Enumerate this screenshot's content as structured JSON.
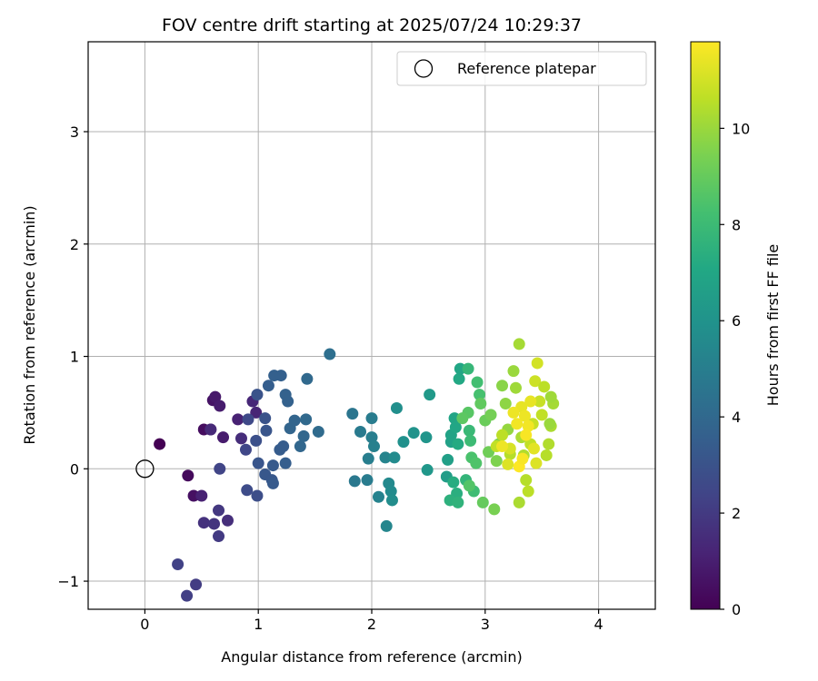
{
  "chart_data": {
    "type": "scatter",
    "title": "FOV centre drift starting at 2025/07/24 10:29:37",
    "xlabel": "Angular distance from reference (arcmin)",
    "ylabel": "Rotation from reference (arcmin)",
    "xlim": [
      -0.5,
      4.5
    ],
    "ylim": [
      -1.25,
      3.8
    ],
    "x_ticks": [
      0,
      1,
      2,
      3,
      4
    ],
    "y_ticks": [
      -1,
      0,
      1,
      2,
      3
    ],
    "x_tick_labels": [
      "0",
      "1",
      "2",
      "3",
      "4"
    ],
    "y_tick_labels": [
      "−1",
      "0",
      "1",
      "2",
      "3"
    ],
    "grid": true,
    "colorbar": {
      "label": "Hours from first FF file",
      "colormap": "viridis",
      "range": [
        0,
        11.8
      ],
      "ticks": [
        0,
        2,
        4,
        6,
        8,
        10
      ],
      "tick_labels": [
        "0",
        "2",
        "4",
        "6",
        "8",
        "10"
      ]
    },
    "legend": {
      "placement": "top-right",
      "entries": [
        {
          "label": "Reference platepar",
          "marker": "open-circle"
        }
      ]
    },
    "reference_point": {
      "x": 0,
      "y": 0
    },
    "series": [
      {
        "marker": "filled-circle",
        "colored_by": "hours",
        "points": [
          {
            "x": 0.13,
            "y": 0.22,
            "c": 0.0
          },
          {
            "x": 0.38,
            "y": -0.06,
            "c": 0.3
          },
          {
            "x": 0.43,
            "y": -0.24,
            "c": 0.5
          },
          {
            "x": 0.5,
            "y": -0.24,
            "c": 1.1
          },
          {
            "x": 0.52,
            "y": 0.35,
            "c": 0.4
          },
          {
            "x": 0.58,
            "y": 0.35,
            "c": 0.6
          },
          {
            "x": 0.6,
            "y": 0.61,
            "c": 0.6
          },
          {
            "x": 0.62,
            "y": 0.64,
            "c": 0.8
          },
          {
            "x": 0.66,
            "y": 0.56,
            "c": 0.9
          },
          {
            "x": 0.69,
            "y": 0.28,
            "c": 0.9
          },
          {
            "x": 0.82,
            "y": 0.44,
            "c": 1.1
          },
          {
            "x": 0.95,
            "y": 0.6,
            "c": 1.3
          },
          {
            "x": 0.98,
            "y": 0.5,
            "c": 1.2
          },
          {
            "x": 0.58,
            "y": 0.35,
            "c": 1.4
          },
          {
            "x": 0.85,
            "y": 0.27,
            "c": 1.5
          },
          {
            "x": 0.73,
            "y": -0.46,
            "c": 1.6
          },
          {
            "x": 0.52,
            "y": -0.48,
            "c": 1.7
          },
          {
            "x": 0.61,
            "y": -0.49,
            "c": 1.8
          },
          {
            "x": 0.65,
            "y": -0.37,
            "c": 1.9
          },
          {
            "x": 0.65,
            "y": -0.6,
            "c": 2.0
          },
          {
            "x": 0.45,
            "y": -1.03,
            "c": 2.1
          },
          {
            "x": 0.37,
            "y": -1.13,
            "c": 2.2
          },
          {
            "x": 0.29,
            "y": -0.85,
            "c": 2.3
          },
          {
            "x": 0.66,
            "y": 0.0,
            "c": 2.4
          },
          {
            "x": 0.89,
            "y": 0.17,
            "c": 2.5
          },
          {
            "x": 0.91,
            "y": 0.44,
            "c": 2.6
          },
          {
            "x": 0.9,
            "y": -0.19,
            "c": 2.7
          },
          {
            "x": 0.99,
            "y": -0.24,
            "c": 2.8
          },
          {
            "x": 0.98,
            "y": 0.25,
            "c": 2.9
          },
          {
            "x": 0.99,
            "y": 0.66,
            "c": 3.0
          },
          {
            "x": 1.06,
            "y": 0.45,
            "c": 3.0
          },
          {
            "x": 1.07,
            "y": 0.34,
            "c": 3.1
          },
          {
            "x": 1.0,
            "y": 0.05,
            "c": 3.1
          },
          {
            "x": 1.06,
            "y": -0.05,
            "c": 3.2
          },
          {
            "x": 1.12,
            "y": -0.1,
            "c": 3.2
          },
          {
            "x": 1.13,
            "y": -0.13,
            "c": 3.3
          },
          {
            "x": 1.13,
            "y": 0.03,
            "c": 3.3
          },
          {
            "x": 1.19,
            "y": 0.17,
            "c": 3.4
          },
          {
            "x": 1.22,
            "y": 0.2,
            "c": 3.4
          },
          {
            "x": 1.24,
            "y": 0.05,
            "c": 3.5
          },
          {
            "x": 1.09,
            "y": 0.74,
            "c": 3.5
          },
          {
            "x": 1.14,
            "y": 0.83,
            "c": 3.6
          },
          {
            "x": 1.2,
            "y": 0.83,
            "c": 3.6
          },
          {
            "x": 1.24,
            "y": 0.66,
            "c": 3.7
          },
          {
            "x": 1.26,
            "y": 0.6,
            "c": 3.7
          },
          {
            "x": 1.28,
            "y": 0.36,
            "c": 3.8
          },
          {
            "x": 1.32,
            "y": 0.43,
            "c": 3.8
          },
          {
            "x": 1.37,
            "y": 0.2,
            "c": 3.9
          },
          {
            "x": 1.4,
            "y": 0.29,
            "c": 3.9
          },
          {
            "x": 1.42,
            "y": 0.44,
            "c": 4.0
          },
          {
            "x": 1.43,
            "y": 0.8,
            "c": 4.0
          },
          {
            "x": 1.53,
            "y": 0.33,
            "c": 4.1
          },
          {
            "x": 1.63,
            "y": 1.02,
            "c": 4.3
          },
          {
            "x": 1.83,
            "y": 0.49,
            "c": 4.6
          },
          {
            "x": 1.85,
            "y": -0.11,
            "c": 4.7
          },
          {
            "x": 1.9,
            "y": 0.33,
            "c": 4.8
          },
          {
            "x": 1.96,
            "y": -0.1,
            "c": 4.9
          },
          {
            "x": 1.97,
            "y": 0.09,
            "c": 5.0
          },
          {
            "x": 2.0,
            "y": 0.45,
            "c": 4.9
          },
          {
            "x": 2.0,
            "y": 0.28,
            "c": 5.0
          },
          {
            "x": 2.02,
            "y": 0.2,
            "c": 5.1
          },
          {
            "x": 2.06,
            "y": -0.25,
            "c": 5.2
          },
          {
            "x": 2.12,
            "y": 0.1,
            "c": 5.3
          },
          {
            "x": 2.13,
            "y": -0.51,
            "c": 5.4
          },
          {
            "x": 2.15,
            "y": -0.13,
            "c": 5.5
          },
          {
            "x": 2.17,
            "y": -0.2,
            "c": 5.6
          },
          {
            "x": 2.18,
            "y": -0.28,
            "c": 5.7
          },
          {
            "x": 2.2,
            "y": 0.1,
            "c": 5.6
          },
          {
            "x": 2.22,
            "y": 0.54,
            "c": 5.8
          },
          {
            "x": 2.28,
            "y": 0.24,
            "c": 5.9
          },
          {
            "x": 2.37,
            "y": 0.32,
            "c": 6.0
          },
          {
            "x": 2.48,
            "y": 0.28,
            "c": 6.1
          },
          {
            "x": 2.49,
            "y": -0.01,
            "c": 6.2
          },
          {
            "x": 2.51,
            "y": 0.66,
            "c": 6.3
          },
          {
            "x": 2.66,
            "y": -0.07,
            "c": 6.5
          },
          {
            "x": 2.67,
            "y": 0.08,
            "c": 6.6
          },
          {
            "x": 2.7,
            "y": 0.24,
            "c": 6.7
          },
          {
            "x": 2.7,
            "y": 0.3,
            "c": 6.8
          },
          {
            "x": 2.73,
            "y": 0.45,
            "c": 6.9
          },
          {
            "x": 2.74,
            "y": 0.37,
            "c": 7.0
          },
          {
            "x": 2.77,
            "y": 0.8,
            "c": 7.1
          },
          {
            "x": 2.78,
            "y": 0.89,
            "c": 7.0
          },
          {
            "x": 2.76,
            "y": 0.22,
            "c": 7.2
          },
          {
            "x": 2.72,
            "y": -0.12,
            "c": 7.3
          },
          {
            "x": 2.75,
            "y": -0.22,
            "c": 7.4
          },
          {
            "x": 2.69,
            "y": -0.28,
            "c": 7.5
          },
          {
            "x": 2.76,
            "y": -0.3,
            "c": 7.6
          },
          {
            "x": 2.83,
            "y": -0.1,
            "c": 7.7
          },
          {
            "x": 2.85,
            "y": 0.89,
            "c": 7.8
          },
          {
            "x": 2.86,
            "y": 0.34,
            "c": 7.9
          },
          {
            "x": 2.87,
            "y": 0.25,
            "c": 8.0
          },
          {
            "x": 2.9,
            "y": -0.2,
            "c": 8.1
          },
          {
            "x": 2.93,
            "y": 0.77,
            "c": 8.2
          },
          {
            "x": 2.95,
            "y": 0.66,
            "c": 8.3
          },
          {
            "x": 2.88,
            "y": 0.1,
            "c": 8.4
          },
          {
            "x": 2.92,
            "y": 0.05,
            "c": 8.5
          },
          {
            "x": 2.86,
            "y": -0.15,
            "c": 8.6
          },
          {
            "x": 2.85,
            "y": 0.5,
            "c": 8.7
          },
          {
            "x": 2.8,
            "y": 0.45,
            "c": 8.8
          },
          {
            "x": 2.96,
            "y": 0.58,
            "c": 8.9
          },
          {
            "x": 2.98,
            "y": -0.3,
            "c": 9.0
          },
          {
            "x": 3.0,
            "y": 0.43,
            "c": 9.1
          },
          {
            "x": 3.03,
            "y": 0.15,
            "c": 9.2
          },
          {
            "x": 3.05,
            "y": 0.48,
            "c": 9.3
          },
          {
            "x": 3.08,
            "y": -0.36,
            "c": 9.4
          },
          {
            "x": 3.1,
            "y": 0.07,
            "c": 9.5
          },
          {
            "x": 3.12,
            "y": 0.22,
            "c": 9.6
          },
          {
            "x": 3.15,
            "y": 0.74,
            "c": 9.7
          },
          {
            "x": 3.18,
            "y": 0.58,
            "c": 9.8
          },
          {
            "x": 3.2,
            "y": 0.35,
            "c": 9.9
          },
          {
            "x": 3.25,
            "y": 0.87,
            "c": 10.0
          },
          {
            "x": 3.27,
            "y": 0.72,
            "c": 10.1
          },
          {
            "x": 3.3,
            "y": 1.11,
            "c": 10.2
          },
          {
            "x": 3.32,
            "y": 0.28,
            "c": 10.3
          },
          {
            "x": 3.34,
            "y": 0.12,
            "c": 10.4
          },
          {
            "x": 3.36,
            "y": -0.1,
            "c": 10.5
          },
          {
            "x": 3.38,
            "y": -0.2,
            "c": 10.6
          },
          {
            "x": 3.4,
            "y": 0.22,
            "c": 10.7
          },
          {
            "x": 3.42,
            "y": 0.4,
            "c": 10.8
          },
          {
            "x": 3.44,
            "y": 0.78,
            "c": 10.9
          },
          {
            "x": 3.46,
            "y": 0.94,
            "c": 11.0
          },
          {
            "x": 3.48,
            "y": 0.6,
            "c": 10.8
          },
          {
            "x": 3.5,
            "y": 0.48,
            "c": 10.7
          },
          {
            "x": 3.52,
            "y": 0.73,
            "c": 10.6
          },
          {
            "x": 3.54,
            "y": 0.12,
            "c": 10.5
          },
          {
            "x": 3.56,
            "y": 0.22,
            "c": 10.4
          },
          {
            "x": 3.58,
            "y": 0.38,
            "c": 10.3
          },
          {
            "x": 3.6,
            "y": 0.58,
            "c": 10.2
          },
          {
            "x": 3.58,
            "y": 0.64,
            "c": 10.1
          },
          {
            "x": 3.57,
            "y": 0.4,
            "c": 10.0
          },
          {
            "x": 3.3,
            "y": -0.3,
            "c": 10.3
          },
          {
            "x": 3.22,
            "y": 0.13,
            "c": 10.5
          },
          {
            "x": 3.15,
            "y": 0.3,
            "c": 10.6
          },
          {
            "x": 3.1,
            "y": 0.2,
            "c": 10.7
          },
          {
            "x": 3.32,
            "y": 0.55,
            "c": 11.4
          },
          {
            "x": 3.35,
            "y": 0.47,
            "c": 11.5
          },
          {
            "x": 3.38,
            "y": 0.38,
            "c": 11.6
          },
          {
            "x": 3.36,
            "y": 0.3,
            "c": 11.7
          },
          {
            "x": 3.3,
            "y": 0.02,
            "c": 11.8
          },
          {
            "x": 3.28,
            "y": 0.4,
            "c": 11.6
          },
          {
            "x": 3.4,
            "y": 0.6,
            "c": 11.4
          },
          {
            "x": 3.43,
            "y": 0.18,
            "c": 11.3
          },
          {
            "x": 3.45,
            "y": 0.05,
            "c": 11.2
          },
          {
            "x": 3.22,
            "y": 0.18,
            "c": 11.1
          },
          {
            "x": 3.2,
            "y": 0.04,
            "c": 11.2
          },
          {
            "x": 3.15,
            "y": 0.2,
            "c": 11.5
          },
          {
            "x": 3.25,
            "y": 0.5,
            "c": 11.5
          },
          {
            "x": 3.33,
            "y": 0.09,
            "c": 11.7
          }
        ]
      }
    ]
  }
}
